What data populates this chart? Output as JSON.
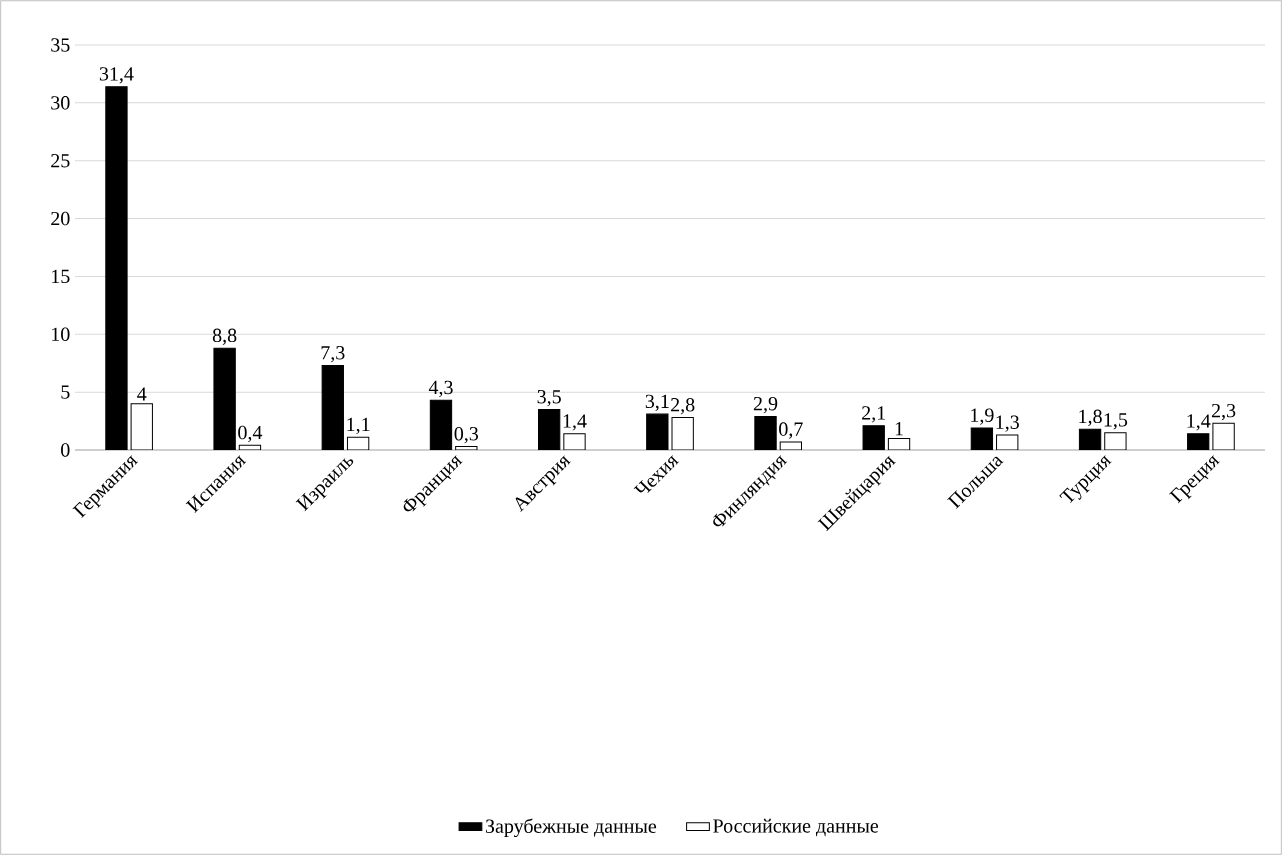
{
  "chart_data": {
    "type": "bar",
    "categories": [
      "Германия",
      "Испания",
      "Израиль",
      "Франция",
      "Австрия",
      "Чехия",
      "Финляндия",
      "Швейцария",
      "Польша",
      "Турция",
      "Греция"
    ],
    "series": [
      {
        "name": "Зарубежные данные",
        "color": "#000000",
        "values": [
          31.4,
          8.8,
          7.3,
          4.3,
          3.5,
          3.1,
          2.9,
          2.1,
          1.9,
          1.8,
          1.4
        ],
        "value_labels": [
          "31,4",
          "8,8",
          "7,3",
          "4,3",
          "3,5",
          "3,1",
          "2,9",
          "2,1",
          "1,9",
          "1,8",
          "1,4"
        ]
      },
      {
        "name": "Российские данные",
        "color": "#ffffff",
        "values": [
          4,
          0.4,
          1.1,
          0.3,
          1.4,
          2.8,
          0.7,
          1,
          1.3,
          1.5,
          2.3
        ],
        "value_labels": [
          "4",
          "0,4",
          "1,1",
          "0,3",
          "1,4",
          "2,8",
          "0,7",
          "1",
          "1,3",
          "1,5",
          "2,3"
        ]
      }
    ],
    "ylim": [
      0,
      35
    ],
    "yticks": [
      0,
      5,
      10,
      15,
      20,
      25,
      30,
      35
    ],
    "grid": "y",
    "legend": "bottom"
  }
}
